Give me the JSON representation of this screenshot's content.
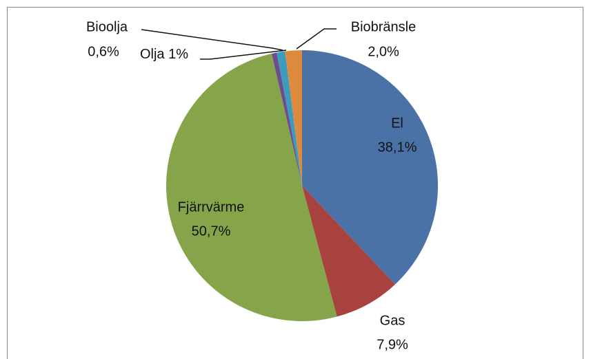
{
  "chart_data": {
    "type": "pie",
    "categories": [
      "El",
      "Gas",
      "Fjärrvärme",
      "Bioolja",
      "Olja",
      "Biobränsle"
    ],
    "values": [
      38.1,
      7.9,
      50.7,
      0.6,
      1,
      2.0
    ],
    "value_labels": [
      "38,1%",
      "7,9%",
      "50,7%",
      "0,6%",
      "1%",
      "2,0%"
    ],
    "colors": [
      "#4a72a6",
      "#a8423f",
      "#86a44a",
      "#6e4c8e",
      "#3d9bbd",
      "#de8a3e"
    ]
  }
}
